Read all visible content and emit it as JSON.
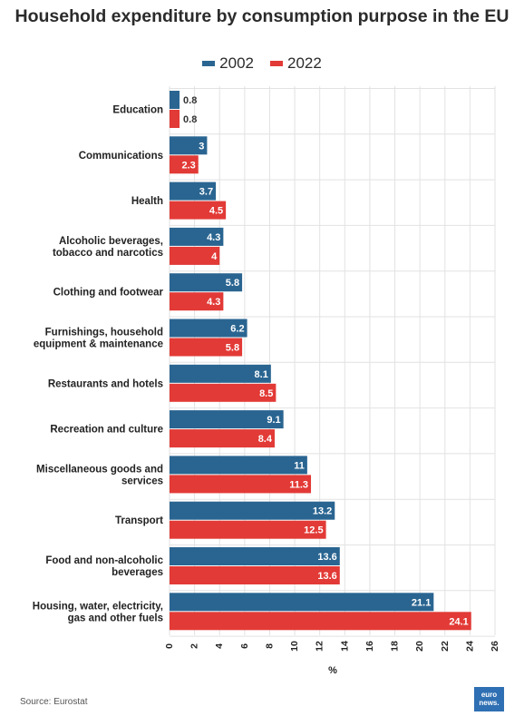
{
  "colors": {
    "series_2002": "#2a6591",
    "series_2022": "#e23a36",
    "grid": "#e2e2e2"
  },
  "chart_data": {
    "type": "bar",
    "orientation": "horizontal",
    "title": "Household expenditure by consumption purpose in the EU",
    "xlabel": "%",
    "ylabel": "",
    "xlim": [
      0,
      26
    ],
    "xticks": [
      0,
      2,
      4,
      6,
      8,
      10,
      12,
      14,
      16,
      18,
      20,
      22,
      24,
      26
    ],
    "grid": true,
    "legend_position": "top",
    "categories": [
      [
        "Education"
      ],
      [
        "Communications"
      ],
      [
        "Health"
      ],
      [
        "Alcoholic beverages,",
        "tobacco and narcotics"
      ],
      [
        "Clothing and footwear"
      ],
      [
        "Furnishings, household",
        "equipment & maintenance"
      ],
      [
        "Restaurants and hotels"
      ],
      [
        "Recreation and culture"
      ],
      [
        "Miscellaneous goods and",
        "services"
      ],
      [
        "Transport"
      ],
      [
        "Food and non-alcoholic",
        "beverages"
      ],
      [
        "Housing, water, electricity,",
        "gas and other fuels"
      ]
    ],
    "series": [
      {
        "name": "2002",
        "values": [
          0.8,
          3,
          3.7,
          4.3,
          5.8,
          6.2,
          8.1,
          9.1,
          11,
          13.2,
          13.6,
          21.1
        ]
      },
      {
        "name": "2022",
        "values": [
          0.8,
          2.3,
          4.5,
          4,
          4.3,
          5.8,
          8.5,
          8.4,
          11.3,
          12.5,
          13.6,
          24.1
        ]
      }
    ]
  },
  "source": "Source: Eurostat",
  "logo": {
    "line1": "euro",
    "line2": "news."
  }
}
